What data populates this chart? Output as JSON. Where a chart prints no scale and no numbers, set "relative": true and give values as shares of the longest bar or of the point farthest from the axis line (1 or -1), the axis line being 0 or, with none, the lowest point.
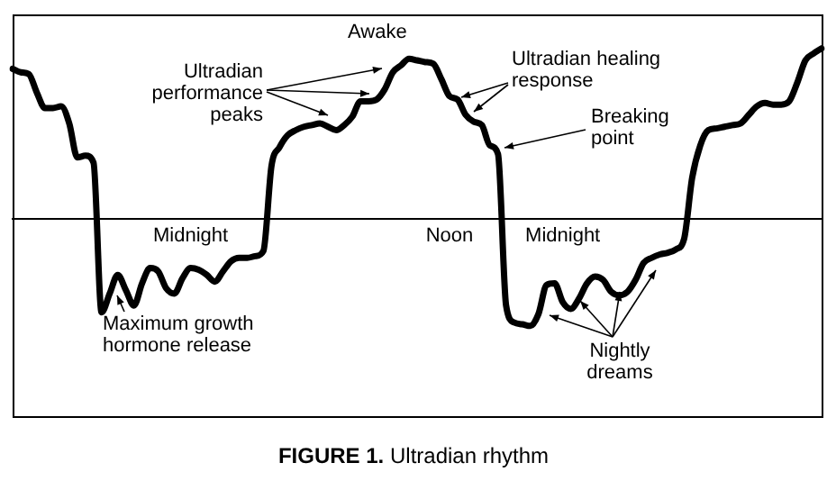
{
  "chart_data": {
    "type": "line",
    "title": "FIGURE 1. Ultradian rhythm",
    "relative": true,
    "grid": false,
    "legend": false,
    "marker": "none",
    "line_style": "solid",
    "categories": [
      null,
      null,
      null,
      null,
      null,
      null,
      null,
      null,
      null,
      null,
      null,
      null,
      null,
      null,
      null,
      null,
      null,
      null,
      null,
      null,
      null,
      null,
      "Midnight",
      null,
      null,
      null,
      null,
      null,
      null,
      null,
      null,
      null,
      null,
      null,
      null,
      null,
      null,
      null,
      null,
      null,
      null,
      null,
      null,
      null,
      null,
      null,
      null,
      null,
      null,
      null,
      null,
      null,
      null,
      null,
      "Noon",
      null,
      null,
      null,
      null,
      null,
      null,
      null,
      null,
      null,
      null,
      null,
      null,
      null,
      "Midnight",
      null,
      null,
      null,
      null,
      null,
      null,
      null,
      null,
      null,
      null,
      null,
      null,
      null,
      null,
      null,
      null,
      null,
      null,
      null,
      null,
      null,
      null,
      null,
      null,
      null,
      null,
      null,
      null,
      null,
      null,
      null,
      null
    ],
    "annotations": [
      "Awake",
      "Ultradian performance peaks",
      "Ultradian healing response",
      "Breaking point",
      "Maximum growth hormone release",
      "Nightly dreams"
    ],
    "series": [
      {
        "color": "#000000",
        "values": [
          0.88,
          0.86,
          0.85,
          0.74,
          0.65,
          0.65,
          0.66,
          0.56,
          0.36,
          0.37,
          0.33,
          -0.55,
          -0.44,
          -0.33,
          -0.42,
          -0.51,
          -0.38,
          -0.29,
          -0.31,
          -0.41,
          -0.44,
          -0.35,
          -0.29,
          -0.3,
          -0.33,
          -0.37,
          -0.31,
          -0.25,
          -0.23,
          -0.23,
          -0.22,
          -0.19,
          0.31,
          0.42,
          0.49,
          0.52,
          0.54,
          0.55,
          0.56,
          0.54,
          0.52,
          0.55,
          0.6,
          0.69,
          0.69,
          0.7,
          0.76,
          0.86,
          0.9,
          0.94,
          0.93,
          0.92,
          0.91,
          0.82,
          0.72,
          0.7,
          0.61,
          0.57,
          0.55,
          0.43,
          0.38,
          -0.51,
          -0.61,
          -0.62,
          -0.63,
          -0.56,
          -0.39,
          -0.38,
          -0.49,
          -0.53,
          -0.47,
          -0.38,
          -0.34,
          -0.36,
          -0.43,
          -0.45,
          -0.43,
          -0.36,
          -0.26,
          -0.23,
          -0.21,
          -0.2,
          -0.18,
          -0.12,
          0.24,
          0.43,
          0.52,
          0.53,
          0.54,
          0.55,
          0.56,
          0.61,
          0.66,
          0.68,
          0.67,
          0.67,
          0.69,
          0.8,
          0.93,
          0.97,
          1.0
        ]
      }
    ]
  }
}
